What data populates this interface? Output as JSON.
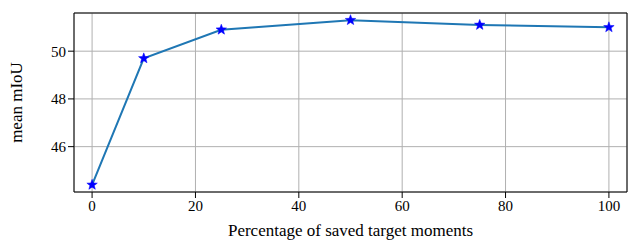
{
  "chart_data": {
    "type": "line",
    "x_label": "Percentage of saved target moments",
    "y_label": "mean mIoU",
    "x": [
      0,
      10,
      25,
      50,
      75,
      100
    ],
    "series": [
      {
        "name": "mean mIoU",
        "color": "#1f77b4",
        "values": [
          44.4,
          49.7,
          50.9,
          51.3,
          51.1,
          51.0
        ],
        "marker": "star"
      }
    ],
    "xlim": [
      -3.5,
      103.5
    ],
    "ylim": [
      44.1,
      51.6
    ],
    "xticks": [
      0,
      20,
      40,
      60,
      80,
      100
    ],
    "yticks": [
      46,
      48,
      50
    ],
    "grid": true
  }
}
